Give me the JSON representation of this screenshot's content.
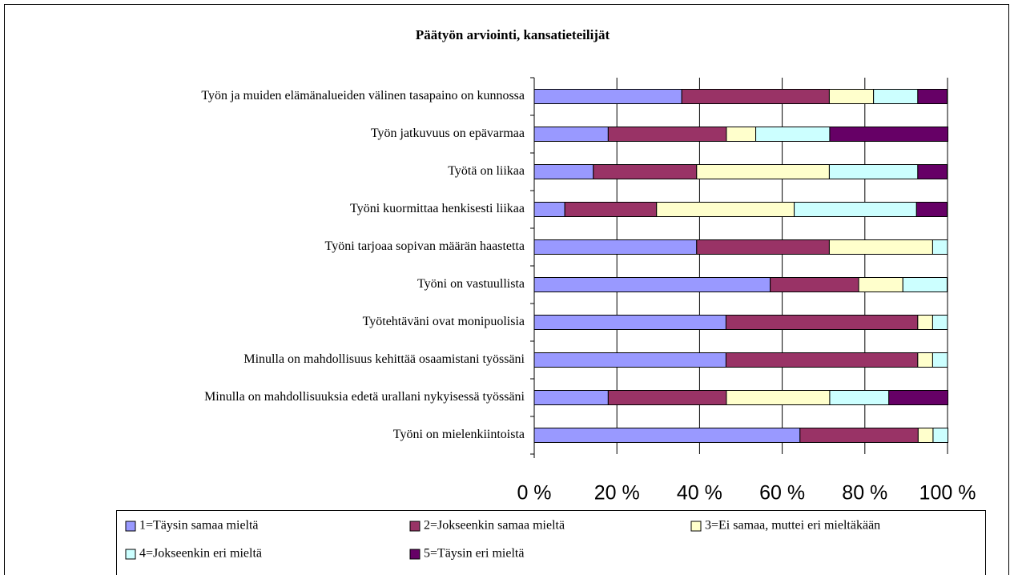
{
  "chart_data": {
    "type": "stacked-barh",
    "title": "Päätyön arviointi, kansatieteilijät",
    "categories": [
      "Työn ja muiden elämänalueiden välinen tasapaino on kunnossa",
      "Työn jatkuvuus on epävarmaa",
      "Työtä on liikaa",
      "Työni kuormittaa henkisesti liikaa",
      "Työni tarjoaa sopivan määrän haastetta",
      "Työni on vastuullista",
      "Työtehtäväni ovat monipuolisia",
      "Minulla on mahdollisuus kehittää osaamistani työssäni",
      "Minulla on mahdollisuuksia edetä urallani nykyisessä työssäni",
      "Työni on mielenkiintoista"
    ],
    "series": [
      {
        "name": "1=Täysin samaa mieltä",
        "color": "#9999ff",
        "values": [
          35.7,
          17.9,
          14.3,
          7.4,
          39.3,
          57.1,
          46.4,
          46.4,
          17.9,
          64.3
        ]
      },
      {
        "name": "2=Jokseenkin samaa mieltä",
        "color": "#993366",
        "values": [
          35.7,
          28.6,
          25.0,
          22.2,
          32.1,
          21.4,
          46.4,
          46.4,
          28.6,
          28.6
        ]
      },
      {
        "name": "3=Ei samaa, muttei eri mieltäkään",
        "color": "#ffffcc",
        "values": [
          10.7,
          7.1,
          32.1,
          33.3,
          25.0,
          10.7,
          3.6,
          3.6,
          25.0,
          3.6
        ]
      },
      {
        "name": "4=Jokseenkin eri mieltä",
        "color": "#ccffff",
        "values": [
          10.7,
          17.9,
          21.4,
          29.6,
          3.6,
          10.7,
          3.6,
          3.6,
          14.3,
          3.6
        ]
      },
      {
        "name": "5=Täysin eri mieltä",
        "color": "#660066",
        "values": [
          7.1,
          28.6,
          7.1,
          7.4,
          0,
          0,
          0,
          0,
          14.3,
          0
        ]
      }
    ],
    "xlim": [
      0,
      100
    ],
    "xticks": [
      {
        "value": 0,
        "label": "0 %"
      },
      {
        "value": 20,
        "label": "20 %"
      },
      {
        "value": 40,
        "label": "40 %"
      },
      {
        "value": 60,
        "label": "60 %"
      },
      {
        "value": 80,
        "label": "80 %"
      },
      {
        "value": 100,
        "label": "100 %"
      }
    ],
    "grid": true,
    "legend": "bottom"
  }
}
